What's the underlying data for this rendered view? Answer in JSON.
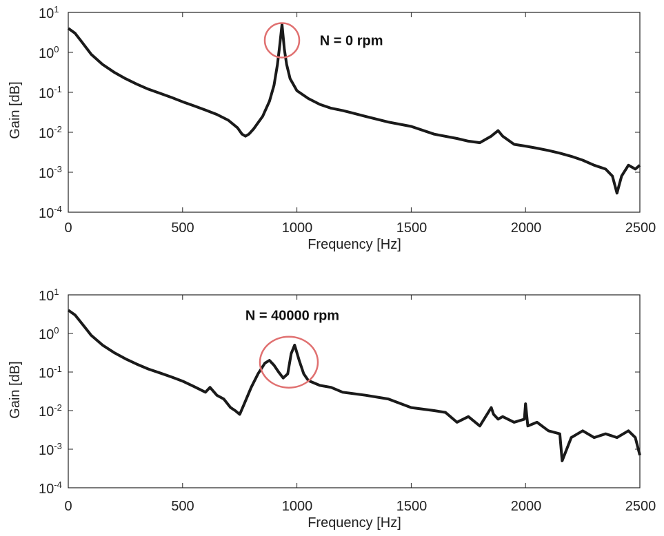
{
  "colors": {
    "trace": "#1a1a1a",
    "highlight": "#e07070",
    "axis": "#222222"
  },
  "chart_data": [
    {
      "type": "line",
      "title": "",
      "xlabel": "Frequency [Hz]",
      "ylabel": "Gain [dB]",
      "xlim": [
        0,
        2500
      ],
      "ylim": [
        0.0001,
        10
      ],
      "yscale": "log",
      "grid": false,
      "xticks": [
        "0",
        "500",
        "1000",
        "1500",
        "2000",
        "2500"
      ],
      "yticks": [
        {
          "base": "10",
          "exp": "1"
        },
        {
          "base": "10",
          "exp": "0"
        },
        {
          "base": "10",
          "exp": "-1"
        },
        {
          "base": "10",
          "exp": "-2"
        },
        {
          "base": "10",
          "exp": "-3"
        },
        {
          "base": "10",
          "exp": "-4"
        }
      ],
      "annotation": {
        "text": "N = 0 rpm",
        "x": 1100,
        "y": 2
      },
      "highlight": {
        "x": 935,
        "y": 2
      },
      "series": [
        {
          "x": [
            0,
            30,
            60,
            100,
            150,
            200,
            250,
            300,
            350,
            400,
            450,
            500,
            550,
            600,
            650,
            700,
            740,
            760,
            775,
            790,
            810,
            850,
            880,
            900,
            915,
            925,
            935,
            945,
            955,
            970,
            1000,
            1050,
            1100,
            1150,
            1200,
            1300,
            1400,
            1500,
            1600,
            1700,
            1750,
            1800,
            1850,
            1880,
            1900,
            1950,
            2000,
            2050,
            2100,
            2150,
            2200,
            2250,
            2300,
            2350,
            2380,
            2400,
            2420,
            2450,
            2480,
            2500
          ],
          "y": [
            4,
            3,
            1.8,
            0.9,
            0.5,
            0.32,
            0.22,
            0.16,
            0.12,
            0.095,
            0.075,
            0.058,
            0.046,
            0.036,
            0.028,
            0.02,
            0.013,
            0.009,
            0.008,
            0.009,
            0.012,
            0.025,
            0.06,
            0.15,
            0.5,
            1.5,
            5,
            1.2,
            0.5,
            0.22,
            0.11,
            0.07,
            0.05,
            0.04,
            0.035,
            0.025,
            0.018,
            0.014,
            0.009,
            0.007,
            0.006,
            0.0055,
            0.008,
            0.011,
            0.008,
            0.005,
            0.0045,
            0.004,
            0.0035,
            0.003,
            0.0025,
            0.002,
            0.0015,
            0.0012,
            0.0008,
            0.0003,
            0.0008,
            0.0015,
            0.0012,
            0.0015
          ]
        }
      ]
    },
    {
      "type": "line",
      "title": "",
      "xlabel": "Frequency [Hz]",
      "ylabel": "Gain [dB]",
      "xlim": [
        0,
        2500
      ],
      "ylim": [
        0.0001,
        10
      ],
      "yscale": "log",
      "grid": false,
      "xticks": [
        "0",
        "500",
        "1000",
        "1500",
        "2000",
        "2500"
      ],
      "yticks": [
        {
          "base": "10",
          "exp": "1"
        },
        {
          "base": "10",
          "exp": "0"
        },
        {
          "base": "10",
          "exp": "-1"
        },
        {
          "base": "10",
          "exp": "-2"
        },
        {
          "base": "10",
          "exp": "-3"
        },
        {
          "base": "10",
          "exp": "-4"
        }
      ],
      "annotation": {
        "text": "N = 40000 rpm",
        "x": 980,
        "y": 3
      },
      "highlight": {
        "x": 965,
        "y": 0.18
      },
      "series": [
        {
          "x": [
            0,
            30,
            60,
            100,
            150,
            200,
            250,
            300,
            350,
            400,
            450,
            500,
            550,
            600,
            620,
            650,
            680,
            710,
            730,
            750,
            770,
            800,
            830,
            860,
            880,
            900,
            920,
            940,
            960,
            975,
            990,
            1010,
            1030,
            1050,
            1100,
            1150,
            1200,
            1300,
            1400,
            1500,
            1600,
            1650,
            1700,
            1750,
            1800,
            1850,
            1860,
            1880,
            1900,
            1950,
            1995,
            2000,
            2010,
            2050,
            2100,
            2150,
            2160,
            2200,
            2250,
            2300,
            2350,
            2400,
            2450,
            2480,
            2500
          ],
          "y": [
            4,
            3,
            1.8,
            0.9,
            0.5,
            0.32,
            0.22,
            0.16,
            0.12,
            0.095,
            0.075,
            0.058,
            0.042,
            0.03,
            0.04,
            0.025,
            0.02,
            0.012,
            0.01,
            0.008,
            0.015,
            0.04,
            0.09,
            0.17,
            0.2,
            0.15,
            0.1,
            0.07,
            0.09,
            0.3,
            0.5,
            0.2,
            0.09,
            0.06,
            0.045,
            0.04,
            0.03,
            0.025,
            0.02,
            0.012,
            0.01,
            0.009,
            0.005,
            0.007,
            0.004,
            0.012,
            0.008,
            0.006,
            0.007,
            0.005,
            0.006,
            0.015,
            0.004,
            0.005,
            0.003,
            0.0025,
            0.0005,
            0.002,
            0.003,
            0.002,
            0.0025,
            0.002,
            0.003,
            0.002,
            0.0007
          ]
        }
      ]
    }
  ]
}
